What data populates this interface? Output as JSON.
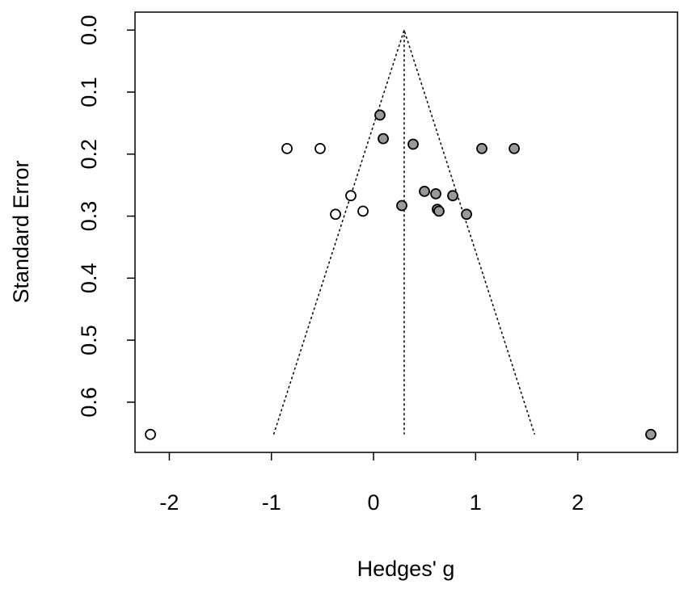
{
  "chart_data": {
    "type": "funnel",
    "xlabel": "Hedges' g",
    "ylabel": "Standard Error",
    "xlim": [
      -2.336,
      2.977
    ],
    "ylim": [
      0.681,
      -0.029
    ],
    "xticks": [
      -2,
      -1,
      0,
      1,
      2
    ],
    "yticks": [
      {
        "value": 0,
        "label": "0.0"
      },
      0.1,
      0.2,
      0.3,
      0.4,
      0.5,
      0.6
    ],
    "series": [
      {
        "color": "#ffffff",
        "x": [
          -0.847,
          -0.523,
          -0.222,
          -0.372,
          -0.103,
          -2.185
        ],
        "y": [
          0.191,
          0.191,
          0.267,
          0.297,
          0.292,
          0.652
        ]
      },
      {
        "color": "#999999",
        "x": [
          0.063,
          0.095,
          0.388,
          1.061,
          1.378,
          0.499,
          0.61,
          0.776,
          0.277,
          0.625,
          0.641,
          0.911,
          2.716
        ],
        "y": [
          0.137,
          0.175,
          0.184,
          0.191,
          0.191,
          0.26,
          0.264,
          0.267,
          0.283,
          0.289,
          0.292,
          0.297,
          0.652
        ]
      }
    ],
    "funnel": {
      "x": [
        -0.978,
        0.3,
        1.578
      ],
      "y": [
        0.652,
        0,
        0.652
      ]
    },
    "center_line": {
      "x": [
        0.3,
        0.3
      ],
      "y": [
        0,
        0.652
      ]
    }
  }
}
